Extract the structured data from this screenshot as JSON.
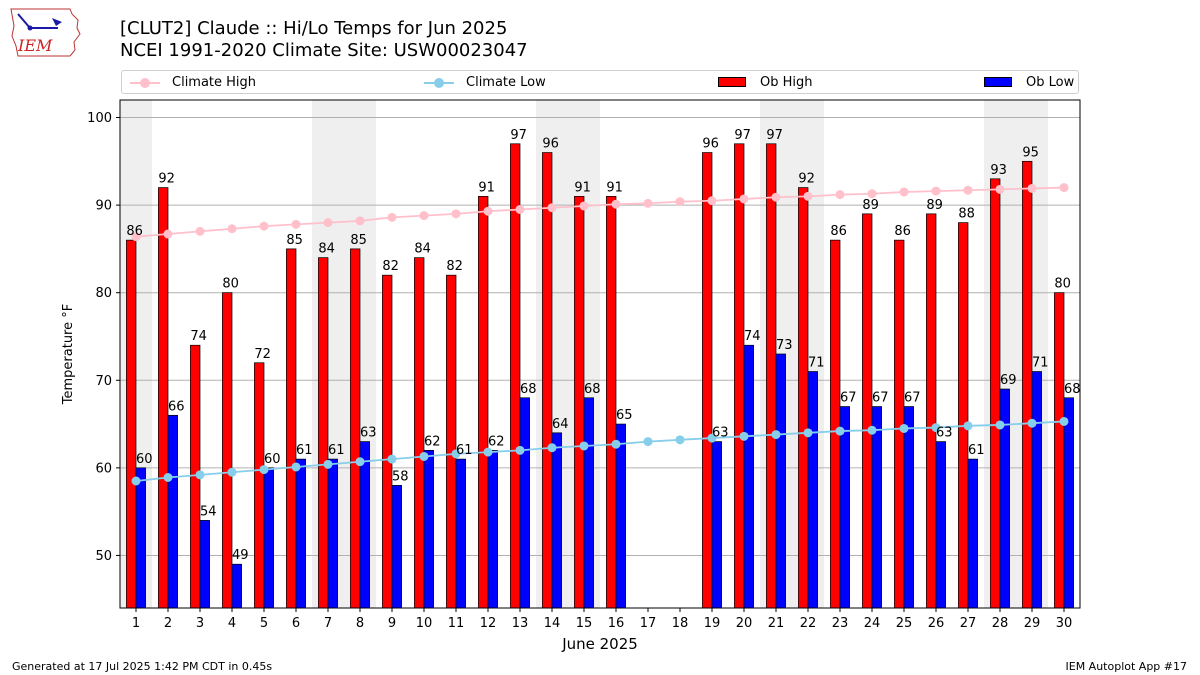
{
  "header": {
    "title_line1": "[CLUT2] Claude :: Hi/Lo Temps for Jun 2025",
    "title_line2": "NCEI 1991-2020 Climate Site: USW00023047"
  },
  "logo": {
    "text": "IEM"
  },
  "footer": {
    "left": "Generated at 17 Jul 2025 1:42 PM CDT in 0.45s",
    "right": "IEM Autoplot App #17"
  },
  "colors": {
    "ob_high": "#ff0000",
    "ob_low": "#0000ff",
    "climate_high": "#ffc0cb",
    "climate_low": "#87ceeb",
    "weekend_shade": "#efefef",
    "grid": "#b0b0b0"
  },
  "chart_data": {
    "type": "bar",
    "xlabel": "June 2025",
    "ylabel": "Temperature °F",
    "ylim": [
      44,
      102
    ],
    "yticks": [
      50,
      60,
      70,
      80,
      90,
      100
    ],
    "grid": "horizontal",
    "legend_position": "top",
    "categories": [
      "1",
      "2",
      "3",
      "4",
      "5",
      "6",
      "7",
      "8",
      "9",
      "10",
      "11",
      "12",
      "13",
      "14",
      "15",
      "16",
      "17",
      "18",
      "19",
      "20",
      "21",
      "22",
      "23",
      "24",
      "25",
      "26",
      "27",
      "28",
      "29",
      "30"
    ],
    "weekend_days": [
      1,
      7,
      8,
      14,
      15,
      21,
      22,
      28,
      29
    ],
    "series": [
      {
        "name": "Ob High",
        "kind": "bar",
        "values": [
          86,
          92,
          74,
          80,
          72,
          85,
          84,
          85,
          82,
          84,
          82,
          91,
          97,
          96,
          91,
          91,
          null,
          null,
          96,
          97,
          97,
          92,
          86,
          89,
          86,
          89,
          88,
          93,
          95,
          80
        ]
      },
      {
        "name": "Ob Low",
        "kind": "bar",
        "values": [
          60,
          66,
          54,
          49,
          60,
          61,
          61,
          63,
          58,
          62,
          61,
          62,
          68,
          64,
          68,
          65,
          null,
          null,
          63,
          74,
          73,
          71,
          67,
          67,
          67,
          63,
          61,
          69,
          71,
          68
        ]
      },
      {
        "name": "Climate High",
        "kind": "line",
        "values": [
          86.4,
          86.7,
          87.0,
          87.3,
          87.6,
          87.8,
          88.0,
          88.2,
          88.6,
          88.8,
          89.0,
          89.3,
          89.5,
          89.7,
          89.9,
          90.1,
          90.2,
          90.4,
          90.5,
          90.7,
          90.9,
          91.0,
          91.2,
          91.3,
          91.5,
          91.6,
          91.7,
          91.8,
          91.9,
          92.0
        ]
      },
      {
        "name": "Climate Low",
        "kind": "line",
        "values": [
          58.5,
          58.9,
          59.2,
          59.5,
          59.8,
          60.1,
          60.4,
          60.7,
          61.0,
          61.3,
          61.6,
          61.8,
          62.0,
          62.3,
          62.5,
          62.7,
          63.0,
          63.2,
          63.4,
          63.6,
          63.8,
          64.0,
          64.2,
          64.3,
          64.5,
          64.6,
          64.8,
          64.9,
          65.1,
          65.3
        ]
      }
    ]
  }
}
